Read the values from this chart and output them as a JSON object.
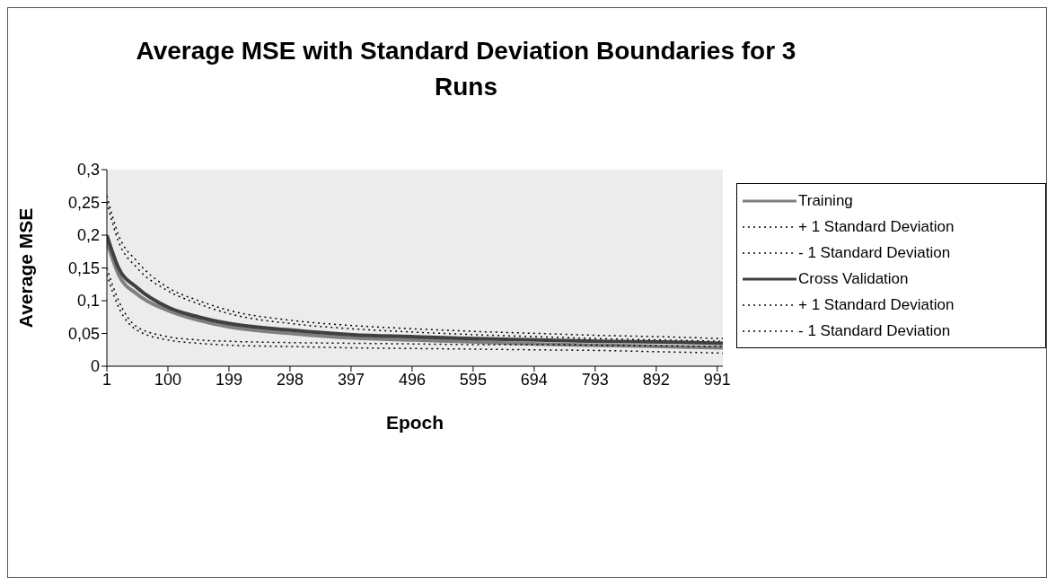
{
  "chart_data": {
    "type": "line",
    "title": "Average MSE with Standard Deviation Boundaries for 3 Runs",
    "xlabel": "Epoch",
    "ylabel": "Average MSE",
    "x": [
      1,
      20,
      50,
      100,
      150,
      200,
      300,
      400,
      500,
      600,
      700,
      800,
      900,
      1000
    ],
    "series": [
      {
        "name": "Training",
        "color": "#808080",
        "values": [
          0.19,
          0.14,
          0.11,
          0.085,
          0.07,
          0.06,
          0.05,
          0.043,
          0.04,
          0.037,
          0.034,
          0.032,
          0.03,
          0.028
        ]
      },
      {
        "name": "+ 1 Standard Deviation",
        "color": "#000000",
        "line_style": "dotted",
        "values": [
          0.25,
          0.19,
          0.15,
          0.115,
          0.095,
          0.08,
          0.065,
          0.057,
          0.052,
          0.048,
          0.045,
          0.042,
          0.04,
          0.038
        ]
      },
      {
        "name": "- 1 Standard Deviation",
        "color": "#000000",
        "line_style": "dotted",
        "values": [
          0.14,
          0.09,
          0.055,
          0.04,
          0.035,
          0.032,
          0.03,
          0.028,
          0.027,
          0.026,
          0.025,
          0.024,
          0.022,
          0.02
        ]
      },
      {
        "name": "Cross Validation",
        "color": "#404040",
        "values": [
          0.2,
          0.15,
          0.12,
          0.09,
          0.075,
          0.065,
          0.055,
          0.048,
          0.045,
          0.042,
          0.04,
          0.038,
          0.037,
          0.035
        ]
      },
      {
        "name": "+ 1 Standard Deviation",
        "color": "#000000",
        "line_style": "dotted",
        "values": [
          0.26,
          0.2,
          0.16,
          0.12,
          0.1,
          0.085,
          0.07,
          0.062,
          0.057,
          0.053,
          0.05,
          0.047,
          0.045,
          0.042
        ]
      },
      {
        "name": "- 1 Standard Deviation",
        "color": "#000000",
        "line_style": "dotted",
        "values": [
          0.15,
          0.1,
          0.06,
          0.045,
          0.04,
          0.038,
          0.036,
          0.035,
          0.034,
          0.033,
          0.033,
          0.032,
          0.031,
          0.03
        ]
      }
    ],
    "xlim": [
      1,
      1000
    ],
    "xticks": [
      1,
      100,
      199,
      298,
      397,
      496,
      595,
      694,
      793,
      892,
      991
    ],
    "ylim": [
      0,
      0.3
    ],
    "yticks": [
      0,
      {
        "value": 0.05,
        "label": "0,05"
      },
      {
        "value": 0.1,
        "label": "0,1"
      },
      {
        "value": 0.15,
        "label": "0,15"
      },
      {
        "value": 0.2,
        "label": "0,2"
      },
      {
        "value": 0.25,
        "label": "0,25"
      },
      {
        "value": 0.3,
        "label": "0,3"
      }
    ],
    "grid": false,
    "legend": "right",
    "marker": "none",
    "line_style": "solid"
  }
}
